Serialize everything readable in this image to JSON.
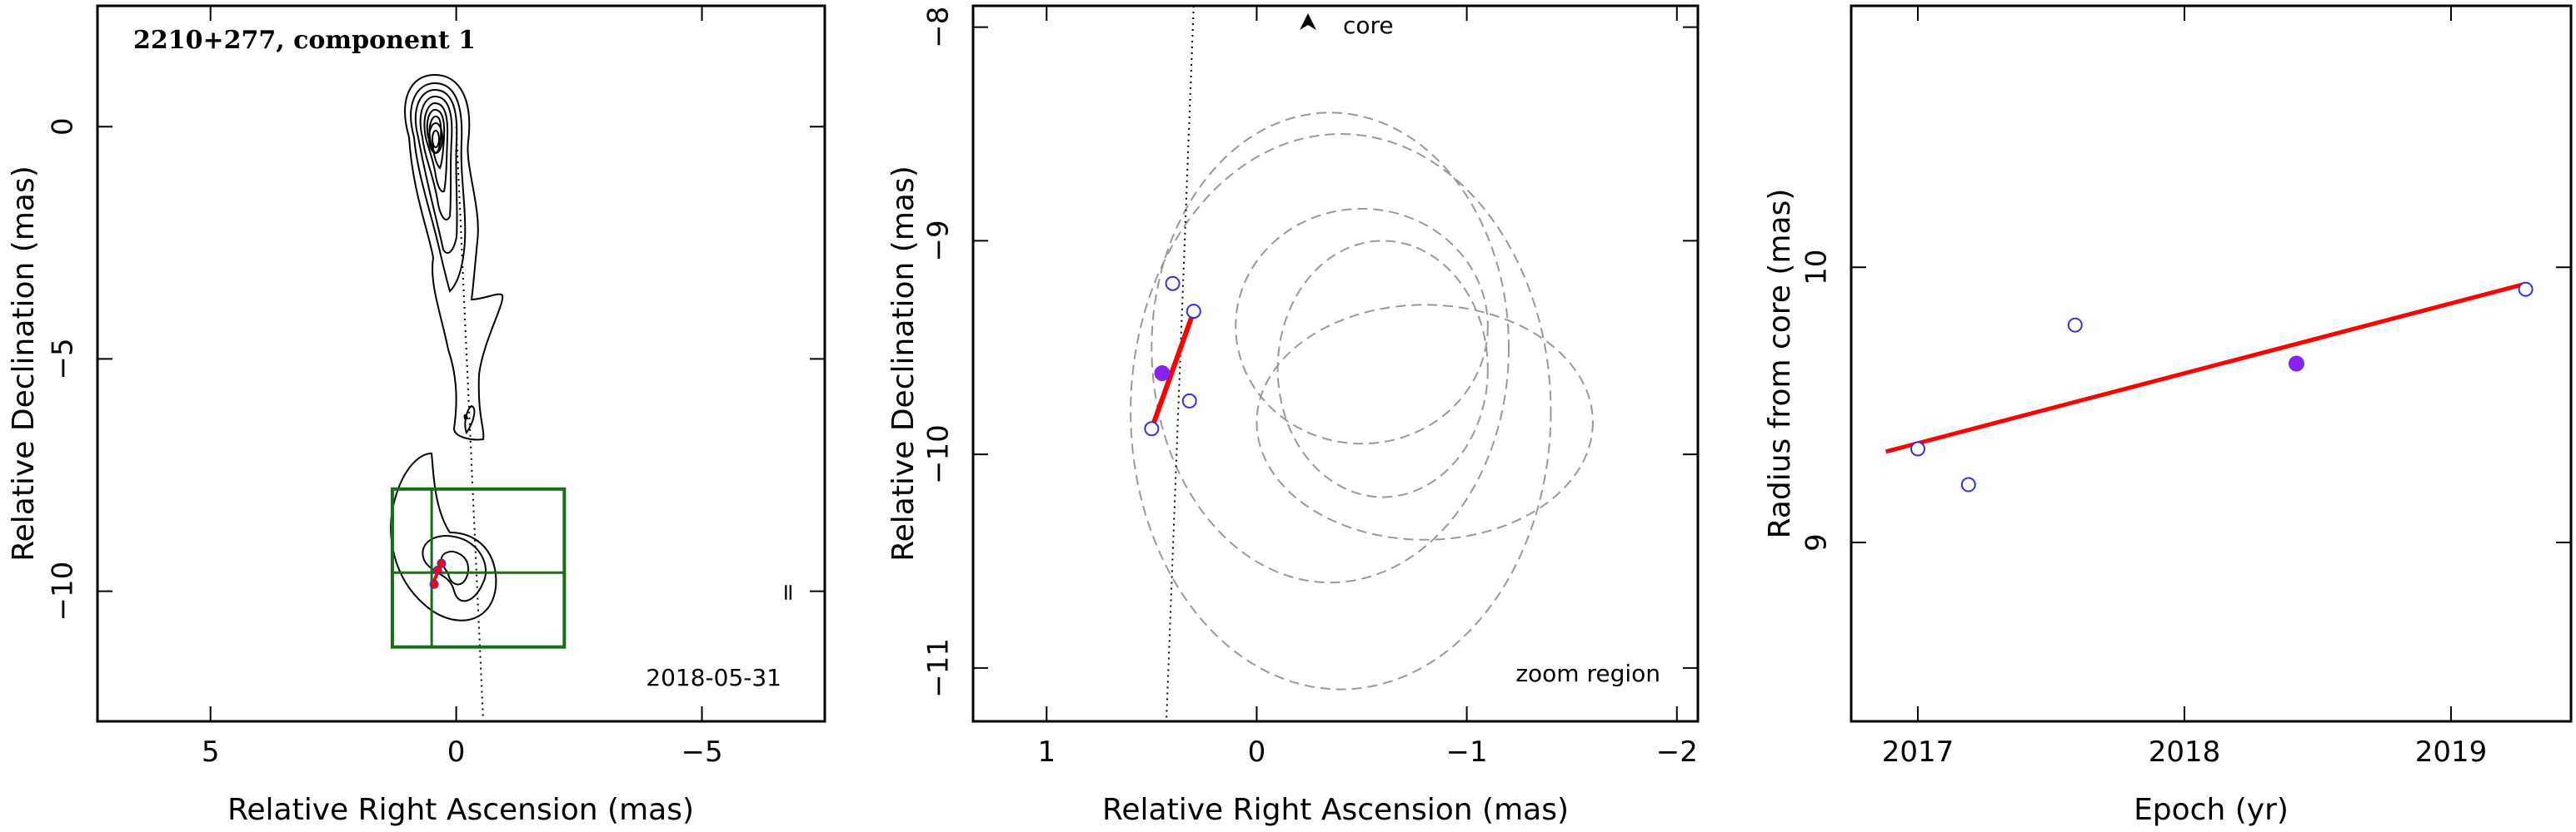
{
  "chart_data": [
    {
      "type": "contour",
      "title": "2210+277, component 1",
      "date": "2018-05-31",
      "side_mark": "=",
      "xlabel": "Relative Right Ascension (mas)",
      "ylabel": "Relative Declination (mas)",
      "xlim": [
        7.3,
        -7.5
      ],
      "ylim": [
        -12.8,
        2.6
      ],
      "xticks": [
        5,
        0,
        -5
      ],
      "yticks": [
        0,
        -5,
        -10
      ],
      "core_position": [
        0,
        0
      ],
      "jet_direction_line": [
        [
          0.0,
          0.0
        ],
        [
          -0.55,
          -12.8
        ]
      ],
      "zoom_box": {
        "ra": [
          1.3,
          -2.2
        ],
        "dec": [
          -7.8,
          -11.2
        ],
        "center": [
          0.5,
          -9.6
        ]
      },
      "epoch_points": [
        [
          0.3,
          -9.4
        ],
        [
          0.45,
          -9.85
        ],
        [
          0.38,
          -9.55
        ]
      ],
      "fit_segment": [
        [
          0.3,
          -9.4
        ],
        [
          0.5,
          -9.9
        ]
      ],
      "colors": {
        "zoom_box": "#1a6b1a",
        "fit": "#ff0000",
        "points": "#3333dd"
      }
    },
    {
      "type": "scatter",
      "note": "zoom region",
      "core_label": "core",
      "xlabel": "Relative Right Ascension (mas)",
      "ylabel": "Relative Declination (mas)",
      "xlim": [
        1.35,
        -2.1
      ],
      "ylim": [
        -11.25,
        -7.9
      ],
      "xticks": [
        1,
        0,
        -1,
        -2
      ],
      "yticks": [
        -8,
        -9,
        -10,
        -11
      ],
      "core_direction_line": [
        [
          0.3,
          -7.9
        ],
        [
          0.43,
          -11.25
        ]
      ],
      "open_points": [
        [
          0.4,
          -9.2
        ],
        [
          0.3,
          -9.33
        ],
        [
          0.32,
          -9.75
        ],
        [
          0.5,
          -9.88
        ]
      ],
      "filled_point": [
        0.45,
        -9.62
      ],
      "fit_segment": [
        [
          0.3,
          -9.33
        ],
        [
          0.5,
          -9.88
        ]
      ],
      "error_ellipses": [
        {
          "center": [
            -0.5,
            -9.4
          ],
          "radius": [
            0.6,
            0.55
          ]
        },
        {
          "center": [
            -0.35,
            -9.5
          ],
          "radius": [
            0.85,
            1.1
          ]
        },
        {
          "center": [
            -0.6,
            -9.6
          ],
          "radius": [
            0.5,
            0.6
          ]
        },
        {
          "center": [
            -0.8,
            -9.85
          ],
          "radius": [
            0.8,
            0.55
          ]
        },
        {
          "center": [
            -0.4,
            -9.8
          ],
          "radius": [
            1.0,
            1.3
          ]
        }
      ],
      "colors": {
        "open": "#3333dd",
        "filled": "#8822ee",
        "fit": "#ff0000",
        "ellipse": "#999999"
      }
    },
    {
      "type": "scatter",
      "xlabel": "Epoch (yr)",
      "ylabel": "Radius from core (mas)",
      "xlim": [
        2016.75,
        2019.45
      ],
      "ylim": [
        8.35,
        10.95
      ],
      "xticks": [
        2017,
        2018,
        2019
      ],
      "yticks": [
        9,
        10
      ],
      "open_points": [
        [
          2017.0,
          9.34
        ],
        [
          2017.19,
          9.21
        ],
        [
          2017.59,
          9.79
        ],
        [
          2019.28,
          9.92
        ]
      ],
      "filled_point": [
        2018.42,
        9.65
      ],
      "fit_line": [
        [
          2016.88,
          9.33
        ],
        [
          2019.28,
          9.94
        ]
      ],
      "colors": {
        "open": "#3333dd",
        "filled": "#8822ee",
        "fit": "#ff0000"
      }
    }
  ]
}
